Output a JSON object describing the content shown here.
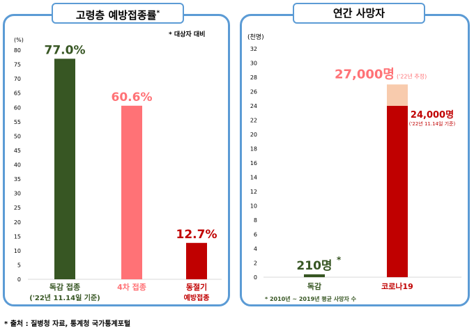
{
  "left_panel": {
    "title": "고령층 예방접종률",
    "title_mark": "*",
    "note": "* 대상자 대비"
  },
  "right_panel": {
    "title": "연간 사망자",
    "footnote": "* 2010년 ~ 2019년 평균 사망자 수"
  },
  "source": "* 출처 : 질병청 자료, 통계청 국가통계포털",
  "colors": {
    "border": "#5b9bd5",
    "flu": "#375623",
    "fourth": "#ff7276",
    "winter": "#c00000",
    "estimate": "#f8cbad"
  },
  "chart_data": [
    {
      "type": "bar",
      "title": "고령층 예방접종률",
      "ylabel": "(%)",
      "ylim": [
        0,
        80
      ],
      "yticks": [
        "0",
        "5",
        "10",
        "15",
        "20",
        "25",
        "30",
        "35",
        "40",
        "45",
        "50",
        "55",
        "60",
        "65",
        "70",
        "75",
        "80"
      ],
      "categories": [
        {
          "line1": "독감 접종",
          "line2": "('22년 11.14일 기준)"
        },
        {
          "line1": "4차 접종",
          "line2": ""
        },
        {
          "line1": "동절기",
          "line2": "예방접종"
        }
      ],
      "values": [
        77.0,
        60.6,
        12.7
      ],
      "labels": [
        "77.0%",
        "60.6%",
        "12.7%"
      ],
      "colors": [
        "#375623",
        "#ff7276",
        "#c00000"
      ]
    },
    {
      "type": "bar",
      "title": "연간 사망자",
      "ylabel": "(천명)",
      "ylim": [
        0,
        32
      ],
      "yticks": [
        "0",
        "2",
        "4",
        "6",
        "8",
        "10",
        "12",
        "14",
        "16",
        "18",
        "20",
        "22",
        "24",
        "26",
        "28",
        "30",
        "32"
      ],
      "categories": [
        "독감",
        "코로나19"
      ],
      "values": [
        0.21,
        24
      ],
      "estimate": 27,
      "labels": [
        "210명",
        "24,000명"
      ],
      "label_marks": [
        "*",
        ""
      ],
      "sublabel": "('22년 11.14일 기준)",
      "estimate_label": "27,000명",
      "estimate_sublabel": "('22년 추정)",
      "colors": [
        "#375623",
        "#c00000"
      ]
    }
  ]
}
